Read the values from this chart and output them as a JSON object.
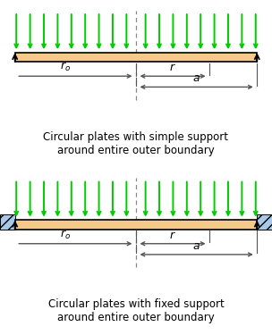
{
  "bg_color": "#ffffff",
  "plate_color": "#f5c98a",
  "plate_edge_color": "#8B4513",
  "arrow_color": "#00cc00",
  "dim_color": "#555555",
  "hatch_facecolor": "#a8c8e8",
  "dashed_line_color": "#888888",
  "title1": "Circular plates with simple support\naround entire outer boundary",
  "title2": "Circular plates with fixed support\naround entire outer boundary",
  "label_ro": "$r_o$",
  "label_r": "$r$",
  "label_a": "$a$",
  "font_size": 8.5,
  "label_font_size": 9
}
